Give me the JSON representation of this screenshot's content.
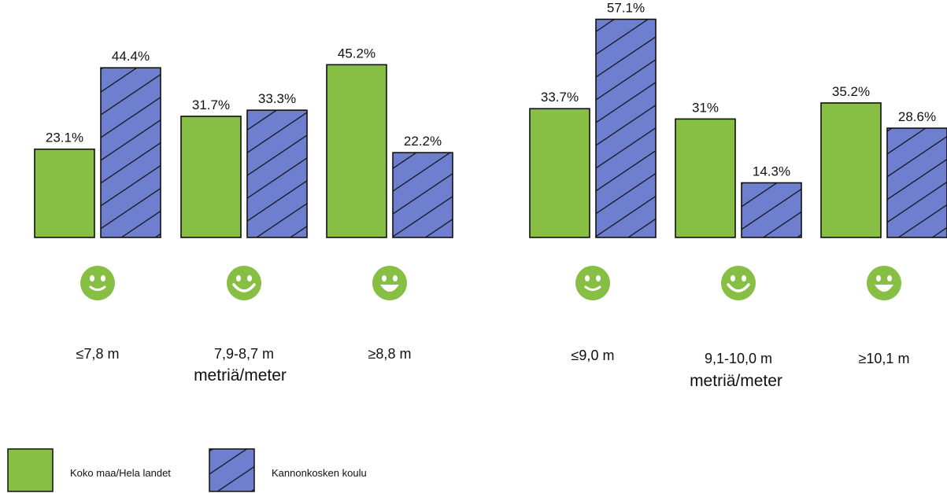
{
  "colors": {
    "green": "#86bf43",
    "blue": "#6f7fd0",
    "outline": "#111111",
    "hatch": "#111111"
  },
  "icon": "smiley-face-icon",
  "legend": {
    "series1": "Koko maa/Hela landet",
    "series2": "Kannonkosken koulu"
  },
  "chart_data": [
    {
      "type": "bar",
      "categories": [
        "≤7,8 m",
        "7,9-8,7 m",
        "≥8,8 m"
      ],
      "xlabel": "metriä/meter",
      "ylim": [
        0,
        60
      ],
      "series": [
        {
          "name": "Koko maa/Hela landet",
          "values": [
            23.1,
            31.7,
            45.2
          ],
          "labels": [
            "23.1%",
            "31.7%",
            "45.2%"
          ]
        },
        {
          "name": "Kannonkosken koulu",
          "values": [
            44.4,
            33.3,
            22.2
          ],
          "labels": [
            "44.4%",
            "33.3%",
            "22.2%"
          ]
        }
      ]
    },
    {
      "type": "bar",
      "categories": [
        "≤9,0 m",
        "9,1-10,0 m",
        "≥10,1 m"
      ],
      "xlabel": "metriä/meter",
      "ylim": [
        0,
        60
      ],
      "series": [
        {
          "name": "Koko maa/Hela landet",
          "values": [
            33.7,
            31,
            35.2
          ],
          "labels": [
            "33.7%",
            "31%",
            "35.2%"
          ]
        },
        {
          "name": "Kannonkosken koulu",
          "values": [
            57.1,
            14.3,
            28.6
          ],
          "labels": [
            "57.1%",
            "14.3%",
            "28.6%"
          ]
        }
      ]
    }
  ]
}
